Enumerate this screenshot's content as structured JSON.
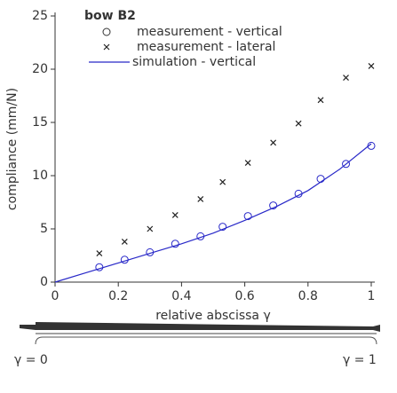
{
  "chart_data": {
    "type": "scatter",
    "legend_title": "bow B2",
    "xlabel": "relative abscissa γ",
    "ylabel": "compliance (mm/N)",
    "xlim": [
      0,
      1
    ],
    "xticks": [
      0,
      0.2,
      0.4,
      0.6,
      0.8,
      1
    ],
    "ylim": [
      0,
      25
    ],
    "yticks": [
      0,
      5,
      10,
      15,
      20,
      25
    ],
    "legend": "upper left",
    "series": [
      {
        "name": "measurement - vertical",
        "marker": "o",
        "color": "#2828c8",
        "x": [
          0.14,
          0.22,
          0.3,
          0.38,
          0.46,
          0.53,
          0.61,
          0.69,
          0.77,
          0.84,
          0.92,
          1.0
        ],
        "values": [
          1.4,
          2.1,
          2.8,
          3.6,
          4.3,
          5.2,
          6.2,
          7.2,
          8.3,
          9.7,
          11.1,
          12.8
        ]
      },
      {
        "name": "measurement - lateral",
        "marker": "x",
        "color": "#222222",
        "x": [
          0.14,
          0.22,
          0.3,
          0.38,
          0.46,
          0.53,
          0.61,
          0.69,
          0.77,
          0.84,
          0.92,
          1.0
        ],
        "values": [
          2.7,
          3.8,
          5.0,
          6.3,
          7.8,
          9.4,
          11.2,
          13.1,
          14.9,
          17.1,
          19.2,
          20.3
        ]
      },
      {
        "name": "simulation - vertical",
        "marker": "line",
        "color": "#2828c8",
        "x": [
          0,
          0.1,
          0.2,
          0.3,
          0.4,
          0.5,
          0.6,
          0.7,
          0.8,
          0.9,
          1.0
        ],
        "values": [
          0,
          0.9,
          1.8,
          2.7,
          3.6,
          4.6,
          5.8,
          7.1,
          8.6,
          10.6,
          13.0
        ]
      }
    ],
    "annotations": [
      "γ = 0",
      "γ = 1"
    ]
  }
}
